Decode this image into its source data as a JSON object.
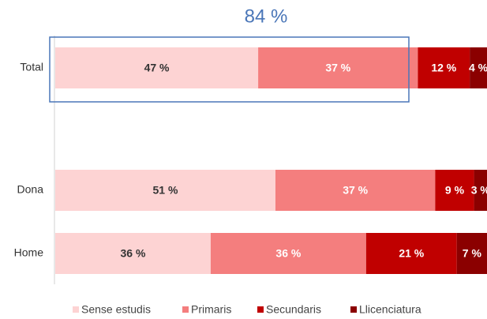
{
  "chart_data": {
    "type": "stacked-barh",
    "categories": [
      "Total",
      "Dona",
      "Home"
    ],
    "series": [
      {
        "name": "Sense estudis",
        "color": "#fdd3d3",
        "values": [
          47,
          51,
          36
        ],
        "value_labels": [
          "47 %",
          "51 %",
          "36 %"
        ]
      },
      {
        "name": "Primaris",
        "color": "#f47e7e",
        "values": [
          37,
          37,
          36
        ],
        "value_labels": [
          "37 %",
          "37 %",
          "36 %"
        ]
      },
      {
        "name": "Secundaris",
        "color": "#c00000",
        "values": [
          12,
          9,
          21
        ],
        "value_labels": [
          "12 %",
          "9 %",
          "21 %"
        ]
      },
      {
        "name": "Llicenciatura",
        "color": "#8b0000",
        "values": [
          4,
          3,
          7
        ],
        "value_labels": [
          "4 %",
          "3 %",
          "7 %"
        ]
      }
    ],
    "xlim": [
      0,
      100
    ],
    "annotation": "84 %",
    "legend": "bottom"
  }
}
